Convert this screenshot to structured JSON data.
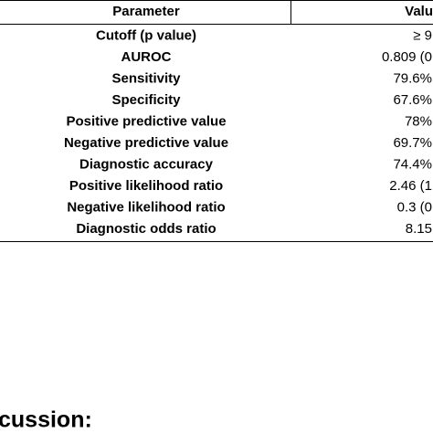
{
  "table": {
    "header": [
      "Parameter",
      "Valu"
    ],
    "rows": [
      [
        "Cutoff (p value)",
        "≥ 9"
      ],
      [
        "AUROC",
        "0.809 (0"
      ],
      [
        "Sensitivity",
        "79.6%"
      ],
      [
        "Specificity",
        "67.6%"
      ],
      [
        "Positive predictive value",
        "78%"
      ],
      [
        "Negative predictive value",
        "69.7%"
      ],
      [
        "Diagnostic accuracy",
        "74.4%"
      ],
      [
        "Positive likelihood ratio",
        "2.46 (1"
      ],
      [
        "Negative likelihood ratio",
        "0.3 (0"
      ],
      [
        "Diagnostic odds ratio",
        "8.15"
      ]
    ]
  },
  "section_heading": "cussion:"
}
